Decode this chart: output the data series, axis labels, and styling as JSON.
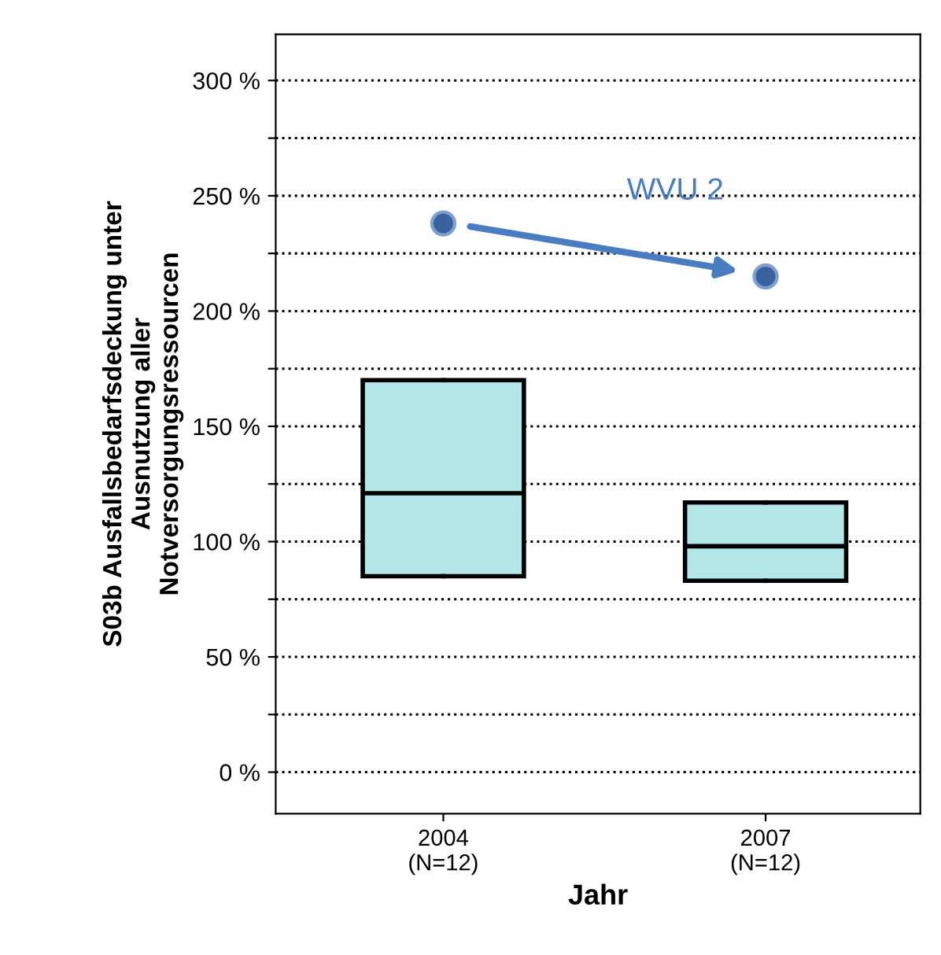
{
  "chart_data": {
    "type": "box",
    "xlabel": "Jahr",
    "ylabel": "S03b Ausfallsbedarfsdeckung unter\nAusnutzung aller\nNotversorgungsressourcen",
    "categories": [
      "2004\n(N=12)",
      "2007\n(N=12)"
    ],
    "boxes": [
      {
        "low": 85,
        "q1": 85,
        "median": 121,
        "q3": 170,
        "high": 170,
        "outliers": [
          238
        ]
      },
      {
        "low": 83,
        "q1": 83,
        "median": 98,
        "q3": 117,
        "high": 117,
        "outliers": [
          215
        ]
      }
    ],
    "color": "#b3e6e6",
    "ylim": [
      -18,
      320
    ],
    "yticks": [
      {
        "value": 0,
        "label": "0 %"
      },
      {
        "value": 25,
        "label": null
      },
      {
        "value": 50,
        "label": "50 %"
      },
      {
        "value": 75,
        "label": null
      },
      {
        "value": 100,
        "label": "100 %"
      },
      {
        "value": 125,
        "label": null
      },
      {
        "value": 150,
        "label": "150 %"
      },
      {
        "value": 175,
        "label": null
      },
      {
        "value": 200,
        "label": "200 %"
      },
      {
        "value": 225,
        "label": null
      },
      {
        "value": 250,
        "label": "250 %"
      },
      {
        "value": 275,
        "label": null
      },
      {
        "value": 300,
        "label": "300 %"
      }
    ],
    "grid": "y",
    "line_style": "dotted",
    "annotations": [
      "WVU 2"
    ]
  }
}
